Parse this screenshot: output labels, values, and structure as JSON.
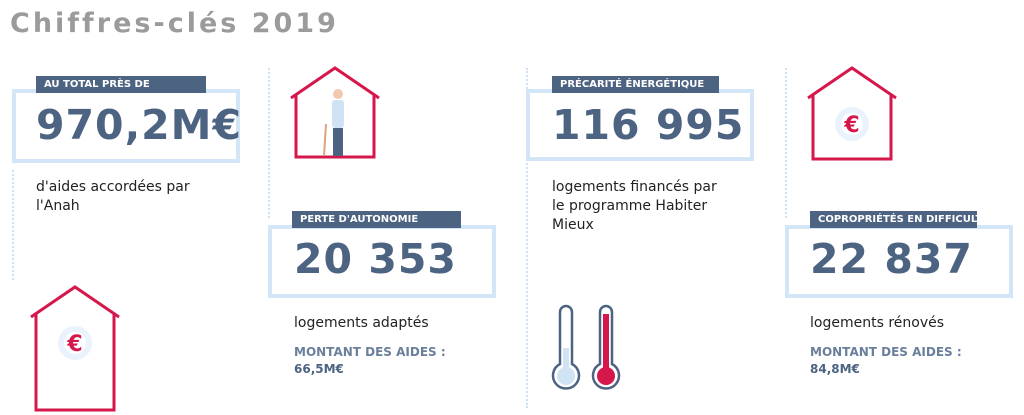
{
  "title": "Chiffres-clés 2019",
  "euro_symbol": "€",
  "cards": [
    {
      "label": "AU TOTAL PRÈS DE",
      "figure": "970,2M€",
      "description": "d'aides accordées par l'Anah"
    },
    {
      "label": "PERTE D'AUTONOMIE",
      "figure": "20 353",
      "description": "logements adaptés",
      "amount_label": "MONTANT DES AIDES :",
      "amount": "66,5M€"
    },
    {
      "label": "PRÉCARITÉ ÉNERGÉTIQUE",
      "figure": "116 995",
      "description": "logements financés par le programme Habiter Mieux"
    },
    {
      "label": "COPROPRIÉTÉS EN DIFFICULTÉ",
      "figure": "22 837",
      "description": "logements rénovés",
      "amount_label": "MONTANT DES AIDES :",
      "amount": "84,8M€"
    }
  ]
}
